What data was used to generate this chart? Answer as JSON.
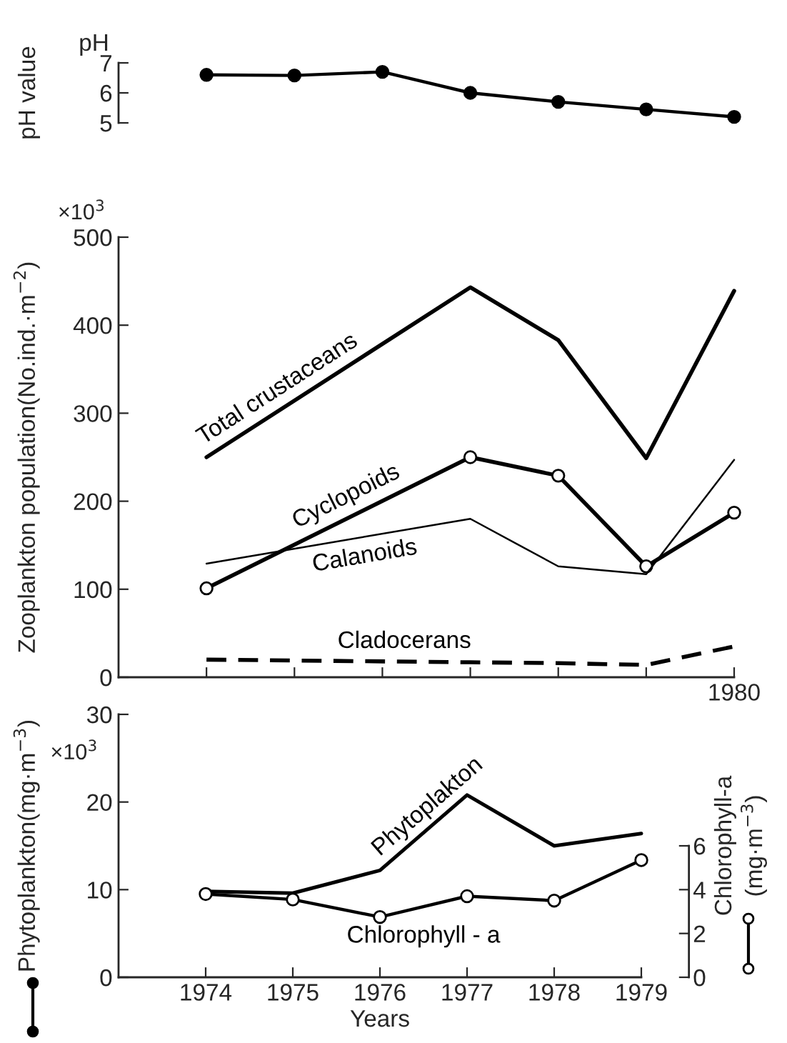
{
  "chart_data": [
    {
      "type": "line",
      "ylabel": "pH value",
      "annotations": [
        "pH"
      ],
      "categories": [
        null,
        null,
        null,
        null,
        null,
        null,
        null
      ],
      "ylim": [
        5,
        7
      ],
      "yticks": [
        5,
        6,
        7
      ],
      "grid": false,
      "legend": false,
      "series": [
        {
          "color": "#000000",
          "marker": "circle",
          "values": [
            6.6,
            6.58,
            6.7,
            6.0,
            5.7,
            5.45,
            5.2
          ]
        }
      ]
    },
    {
      "type": "line",
      "ylabel": "Zooplankton population(No.ind.·m$^{−2}$)",
      "annotations": [
        "×10$^{3}$"
      ],
      "categories": [
        null,
        null,
        null,
        null,
        null,
        null,
        "1980"
      ],
      "ylim": [
        0,
        500
      ],
      "yticks": [
        0,
        100,
        200,
        300,
        400,
        500
      ],
      "grid": false,
      "legend": false,
      "series": [
        {
          "name": "Total crustaceans",
          "color": "#000000",
          "marker": "none",
          "line_style": "solid",
          "values": [
            250,
            null,
            null,
            443,
            383,
            249,
            439
          ]
        },
        {
          "name": "Cyclopoids",
          "color": "#000000",
          "marker": "circle",
          "line_style": "solid",
          "values": [
            101,
            null,
            null,
            250,
            229,
            126,
            187
          ]
        },
        {
          "name": "Calanoids",
          "color": "#000000",
          "marker": "none",
          "line_style": "solid",
          "values": [
            129,
            null,
            null,
            180,
            126,
            117,
            247
          ]
        },
        {
          "name": "Cladocerans",
          "color": "#000000",
          "marker": "none",
          "line_style": "dashed",
          "values": [
            20,
            null,
            null,
            17,
            16,
            14,
            35
          ]
        }
      ]
    },
    {
      "type": "line",
      "xlabel": "Years",
      "ylabel": "Phytoplankton(mg·m$^{−3}$)",
      "y2label": "Chlorophyll-a\n(mg·m$^{−3}$)",
      "annotations": [
        "×10$^{3}$"
      ],
      "xlim": [
        1973,
        1979
      ],
      "xticks": [
        1974,
        1975,
        1976,
        1977,
        1978,
        1979
      ],
      "ylim": [
        0,
        30
      ],
      "yticks": [
        0,
        10,
        20,
        30
      ],
      "y2lim": [
        0,
        12
      ],
      "y2ticks": [
        0,
        2,
        4,
        6
      ],
      "grid": false,
      "legend": false,
      "series": [
        {
          "name": "Phytoplakton",
          "color": "#000000",
          "marker": "none",
          "line_style": "solid",
          "x": [
            1974,
            1975,
            1976,
            1977,
            1978,
            1979
          ],
          "values": [
            9.8,
            9.6,
            12.2,
            20.8,
            15.0,
            16.4
          ]
        },
        {
          "name": "Chlorophyll - a",
          "color": "#000000",
          "marker": "circle",
          "line_style": "solid",
          "axis": "y2",
          "x": [
            1974,
            1975,
            1976,
            1977,
            1978,
            1979
          ],
          "values": [
            3.8,
            3.55,
            2.75,
            3.7,
            3.5,
            5.35
          ]
        }
      ]
    }
  ]
}
